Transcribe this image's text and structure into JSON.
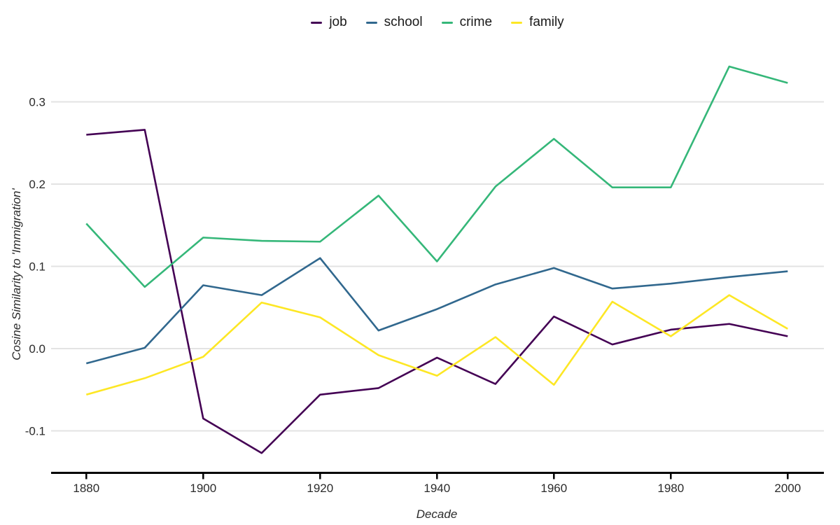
{
  "page": {
    "background_color": "#ffffff",
    "text_color": "#2b2b2b",
    "gridline_color": "#e3e3e3",
    "axis_line_color": "#000000"
  },
  "chart_data": {
    "type": "line",
    "title": "",
    "xlabel": "Decade",
    "ylabel": "Cosine Similarity to 'Immigration'",
    "x": [
      1880,
      1890,
      1900,
      1910,
      1920,
      1930,
      1940,
      1950,
      1960,
      1970,
      1980,
      1990,
      2000
    ],
    "xtick_labels": [
      1880,
      1900,
      1920,
      1940,
      1960,
      1980,
      2000
    ],
    "yticks": [
      -0.1,
      0.0,
      0.1,
      0.2,
      0.3
    ],
    "ylim": [
      -0.15,
      0.36
    ],
    "xlim": [
      1874,
      2006
    ],
    "grid": "horizontal gridlines only, light gray",
    "legend_position": "top center",
    "legend_items": [
      "job",
      "school",
      "crime",
      "family"
    ],
    "series": [
      {
        "name": "job",
        "color": "#440154",
        "values": [
          0.26,
          0.266,
          -0.085,
          -0.127,
          -0.056,
          -0.048,
          -0.011,
          -0.043,
          0.039,
          0.005,
          0.023,
          0.03,
          0.015
        ]
      },
      {
        "name": "school",
        "color": "#31688E",
        "values": [
          -0.018,
          0.001,
          0.077,
          0.065,
          0.11,
          0.022,
          0.048,
          0.078,
          0.098,
          0.073,
          0.079,
          0.087,
          0.094
        ]
      },
      {
        "name": "crime",
        "color": "#35B779",
        "values": [
          0.152,
          0.075,
          0.135,
          0.131,
          0.13,
          0.186,
          0.106,
          0.197,
          0.255,
          0.196,
          0.196,
          0.343,
          0.323
        ]
      },
      {
        "name": "family",
        "color": "#FDE725",
        "values": [
          -0.056,
          -0.036,
          -0.01,
          0.056,
          0.038,
          -0.008,
          -0.033,
          0.014,
          -0.044,
          0.057,
          0.015,
          0.065,
          0.024
        ]
      }
    ]
  }
}
